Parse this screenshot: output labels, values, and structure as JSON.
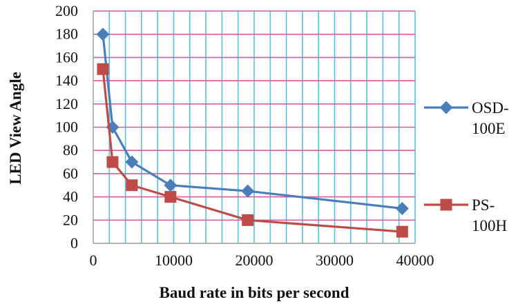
{
  "chart_data": {
    "type": "line",
    "title": "",
    "xlabel": "Baud rate in bits per second",
    "ylabel": "LED View Angle",
    "xlim": [
      0,
      40000
    ],
    "ylim": [
      0,
      200
    ],
    "x_major_ticks": [
      0,
      10000,
      20000,
      30000,
      40000
    ],
    "y_major_ticks": [
      0,
      20,
      40,
      60,
      80,
      100,
      120,
      140,
      160,
      180,
      200
    ],
    "x_gridline_step": 2000,
    "y_gridline_step": 20,
    "grid": true,
    "legend_position": "right",
    "colors": {
      "vertical_grid": "#5bc0e0",
      "horizontal_grid": "#d9599a"
    },
    "series": [
      {
        "name_lines": [
          "OSD-",
          "100E"
        ],
        "marker": "diamond",
        "color": "#4a7ebb",
        "points": [
          {
            "x": 1200,
            "y": 180
          },
          {
            "x": 2400,
            "y": 100
          },
          {
            "x": 4800,
            "y": 70
          },
          {
            "x": 9600,
            "y": 50
          },
          {
            "x": 19200,
            "y": 45
          },
          {
            "x": 38400,
            "y": 30
          }
        ]
      },
      {
        "name_lines": [
          "PS-",
          "100H"
        ],
        "marker": "square",
        "color": "#be4b48",
        "points": [
          {
            "x": 1200,
            "y": 150
          },
          {
            "x": 2400,
            "y": 70
          },
          {
            "x": 4800,
            "y": 50
          },
          {
            "x": 9600,
            "y": 40
          },
          {
            "x": 19200,
            "y": 20
          },
          {
            "x": 38400,
            "y": 10
          }
        ]
      }
    ]
  }
}
